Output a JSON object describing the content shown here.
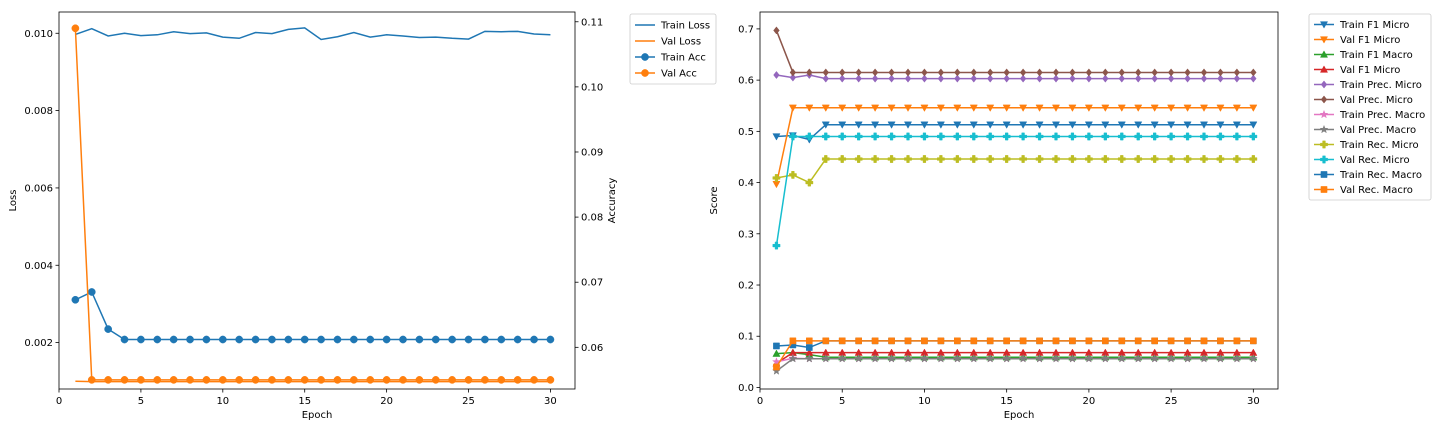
{
  "chart_data": [
    {
      "type": "line",
      "xlabel": "Epoch",
      "ylabel": "Loss",
      "y2label": "Accuracy",
      "xlim": [
        0,
        31.5
      ],
      "ylim": [
        0.0008,
        0.01055
      ],
      "y2lim": [
        0.0536,
        0.1115
      ],
      "xticks": [
        0,
        5,
        10,
        15,
        20,
        25,
        30
      ],
      "yticks": [
        0.002,
        0.004,
        0.006,
        0.008,
        0.01
      ],
      "ytick_labels": [
        "0.002",
        "0.004",
        "0.006",
        "0.008",
        "0.010"
      ],
      "y2ticks": [
        0.06,
        0.07,
        0.08,
        0.09,
        0.1,
        0.11
      ],
      "y2tick_labels": [
        "0.06",
        "0.07",
        "0.08",
        "0.09",
        "0.10",
        "0.11"
      ],
      "legend_position": "outside-top-right",
      "x": [
        1,
        2,
        3,
        4,
        5,
        6,
        7,
        8,
        9,
        10,
        11,
        12,
        13,
        14,
        15,
        16,
        17,
        18,
        19,
        20,
        21,
        22,
        23,
        24,
        25,
        26,
        27,
        28,
        29,
        30
      ],
      "series": [
        {
          "name": "Train Loss",
          "axis": "left",
          "color": "#1f77b4",
          "marker": "none",
          "values": [
            0.00997,
            0.01012,
            0.00993,
            0.01,
            0.00994,
            0.00996,
            0.01004,
            0.00999,
            0.01001,
            0.0099,
            0.00987,
            0.01002,
            0.00999,
            0.0101,
            0.01014,
            0.00984,
            0.00991,
            0.01002,
            0.0099,
            0.00996,
            0.00993,
            0.00989,
            0.0099,
            0.00987,
            0.00985,
            0.01005,
            0.01004,
            0.01005,
            0.00998,
            0.00996
          ]
        },
        {
          "name": "Val Loss",
          "axis": "left",
          "color": "#ff7f0e",
          "marker": "none",
          "values": [
            0.001,
            0.00099,
            0.00099,
            0.00099,
            0.00099,
            0.00099,
            0.00099,
            0.00099,
            0.00099,
            0.00099,
            0.00099,
            0.00099,
            0.00099,
            0.00099,
            0.00099,
            0.00099,
            0.00099,
            0.00099,
            0.00099,
            0.00099,
            0.00099,
            0.00099,
            0.00099,
            0.00099,
            0.00099,
            0.00099,
            0.00099,
            0.00099,
            0.00099,
            0.00099
          ]
        },
        {
          "name": "Train Acc",
          "axis": "right",
          "color": "#1f77b4",
          "marker": "circle",
          "values": [
            0.0673,
            0.0685,
            0.0628,
            0.0612,
            0.0612,
            0.0612,
            0.0612,
            0.0612,
            0.0612,
            0.0612,
            0.0612,
            0.0612,
            0.0612,
            0.0612,
            0.0612,
            0.0612,
            0.0612,
            0.0612,
            0.0612,
            0.0612,
            0.0612,
            0.0612,
            0.0612,
            0.0612,
            0.0612,
            0.0612,
            0.0612,
            0.0612,
            0.0612,
            0.0612
          ]
        },
        {
          "name": "Val Acc",
          "axis": "right",
          "color": "#ff7f0e",
          "marker": "circle",
          "values": [
            0.109,
            0.055,
            0.055,
            0.055,
            0.055,
            0.055,
            0.055,
            0.055,
            0.055,
            0.055,
            0.055,
            0.055,
            0.055,
            0.055,
            0.055,
            0.055,
            0.055,
            0.055,
            0.055,
            0.055,
            0.055,
            0.055,
            0.055,
            0.055,
            0.055,
            0.055,
            0.055,
            0.055,
            0.055,
            0.055
          ]
        }
      ]
    },
    {
      "type": "line",
      "xlabel": "Epoch",
      "ylabel": "Score",
      "xlim": [
        0,
        31.5
      ],
      "ylim": [
        -0.003,
        0.733
      ],
      "xticks": [
        0,
        5,
        10,
        15,
        20,
        25,
        30
      ],
      "yticks": [
        0.0,
        0.1,
        0.2,
        0.3,
        0.4,
        0.5,
        0.6,
        0.7
      ],
      "ytick_labels": [
        "0.0",
        "0.1",
        "0.2",
        "0.3",
        "0.4",
        "0.5",
        "0.6",
        "0.7"
      ],
      "legend_position": "outside-top-right",
      "x": [
        1,
        2,
        3,
        4,
        5,
        6,
        7,
        8,
        9,
        10,
        11,
        12,
        13,
        14,
        15,
        16,
        17,
        18,
        19,
        20,
        21,
        22,
        23,
        24,
        25,
        26,
        27,
        28,
        29,
        30
      ],
      "series": [
        {
          "name": "Train F1 Micro",
          "color": "#1f77b4",
          "marker": "triangle-down",
          "values": [
            0.49,
            0.492,
            0.484,
            0.513,
            0.513,
            0.513,
            0.513,
            0.513,
            0.513,
            0.513,
            0.513,
            0.513,
            0.513,
            0.513,
            0.513,
            0.513,
            0.513,
            0.513,
            0.513,
            0.513,
            0.513,
            0.513,
            0.513,
            0.513,
            0.513,
            0.513,
            0.513,
            0.513,
            0.513,
            0.513
          ]
        },
        {
          "name": "Val F1 Micro",
          "color": "#ff7f0e",
          "marker": "triangle-down",
          "values": [
            0.397,
            0.546,
            0.546,
            0.546,
            0.546,
            0.546,
            0.546,
            0.546,
            0.546,
            0.546,
            0.546,
            0.546,
            0.546,
            0.546,
            0.546,
            0.546,
            0.546,
            0.546,
            0.546,
            0.546,
            0.546,
            0.546,
            0.546,
            0.546,
            0.546,
            0.546,
            0.546,
            0.546,
            0.546,
            0.546
          ]
        },
        {
          "name": "Train F1 Macro",
          "color": "#2ca02c",
          "marker": "triangle-up",
          "values": [
            0.066,
            0.068,
            0.064,
            0.059,
            0.059,
            0.059,
            0.059,
            0.059,
            0.059,
            0.059,
            0.059,
            0.059,
            0.059,
            0.059,
            0.059,
            0.059,
            0.059,
            0.059,
            0.059,
            0.059,
            0.059,
            0.059,
            0.059,
            0.059,
            0.059,
            0.059,
            0.059,
            0.059,
            0.059,
            0.059
          ]
        },
        {
          "name": "Val F1 Micro",
          "color": "#d62728",
          "marker": "triangle-up",
          "values": [
            0.047,
            0.068,
            0.068,
            0.068,
            0.068,
            0.068,
            0.068,
            0.068,
            0.068,
            0.068,
            0.068,
            0.068,
            0.068,
            0.068,
            0.068,
            0.068,
            0.068,
            0.068,
            0.068,
            0.068,
            0.068,
            0.068,
            0.068,
            0.068,
            0.068,
            0.068,
            0.068,
            0.068,
            0.068,
            0.068
          ]
        },
        {
          "name": "Train Prec. Micro",
          "color": "#9467bd",
          "marker": "diamond",
          "values": [
            0.61,
            0.605,
            0.61,
            0.603,
            0.603,
            0.603,
            0.603,
            0.603,
            0.603,
            0.603,
            0.603,
            0.603,
            0.603,
            0.603,
            0.603,
            0.603,
            0.603,
            0.603,
            0.603,
            0.603,
            0.603,
            0.603,
            0.603,
            0.603,
            0.603,
            0.603,
            0.603,
            0.603,
            0.603,
            0.603
          ]
        },
        {
          "name": "Val Prec. Micro",
          "color": "#8c564b",
          "marker": "diamond",
          "values": [
            0.697,
            0.615,
            0.615,
            0.615,
            0.615,
            0.615,
            0.615,
            0.615,
            0.615,
            0.615,
            0.615,
            0.615,
            0.615,
            0.615,
            0.615,
            0.615,
            0.615,
            0.615,
            0.615,
            0.615,
            0.615,
            0.615,
            0.615,
            0.615,
            0.615,
            0.615,
            0.615,
            0.615,
            0.615,
            0.615
          ]
        },
        {
          "name": "Train Prec. Macro",
          "color": "#e377c2",
          "marker": "star",
          "values": [
            0.05,
            0.057,
            0.056,
            0.056,
            0.056,
            0.056,
            0.056,
            0.056,
            0.056,
            0.056,
            0.056,
            0.056,
            0.056,
            0.056,
            0.056,
            0.056,
            0.056,
            0.056,
            0.056,
            0.056,
            0.056,
            0.056,
            0.056,
            0.056,
            0.056,
            0.056,
            0.056,
            0.056,
            0.056,
            0.056
          ]
        },
        {
          "name": "Val Prec. Macro",
          "color": "#7f7f7f",
          "marker": "star",
          "values": [
            0.032,
            0.056,
            0.056,
            0.056,
            0.056,
            0.056,
            0.056,
            0.056,
            0.056,
            0.056,
            0.056,
            0.056,
            0.056,
            0.056,
            0.056,
            0.056,
            0.056,
            0.056,
            0.056,
            0.056,
            0.056,
            0.056,
            0.056,
            0.056,
            0.056,
            0.056,
            0.056,
            0.056,
            0.056,
            0.056
          ]
        },
        {
          "name": "Train Rec. Micro",
          "color": "#bcbd22",
          "marker": "plus",
          "values": [
            0.409,
            0.415,
            0.4,
            0.446,
            0.446,
            0.446,
            0.446,
            0.446,
            0.446,
            0.446,
            0.446,
            0.446,
            0.446,
            0.446,
            0.446,
            0.446,
            0.446,
            0.446,
            0.446,
            0.446,
            0.446,
            0.446,
            0.446,
            0.446,
            0.446,
            0.446,
            0.446,
            0.446,
            0.446,
            0.446
          ]
        },
        {
          "name": "Val Rec. Micro",
          "color": "#17becf",
          "marker": "plus",
          "values": [
            0.277,
            0.49,
            0.49,
            0.49,
            0.49,
            0.49,
            0.49,
            0.49,
            0.49,
            0.49,
            0.49,
            0.49,
            0.49,
            0.49,
            0.49,
            0.49,
            0.49,
            0.49,
            0.49,
            0.49,
            0.49,
            0.49,
            0.49,
            0.49,
            0.49,
            0.49,
            0.49,
            0.49,
            0.49,
            0.49
          ]
        },
        {
          "name": "Train Rec. Macro",
          "color": "#1f77b4",
          "marker": "square",
          "values": [
            0.081,
            0.083,
            0.078,
            0.091,
            0.091,
            0.091,
            0.091,
            0.091,
            0.091,
            0.091,
            0.091,
            0.091,
            0.091,
            0.091,
            0.091,
            0.091,
            0.091,
            0.091,
            0.091,
            0.091,
            0.091,
            0.091,
            0.091,
            0.091,
            0.091,
            0.091,
            0.091,
            0.091,
            0.091,
            0.091
          ]
        },
        {
          "name": "Val Rec. Macro",
          "color": "#ff7f0e",
          "marker": "square",
          "values": [
            0.04,
            0.091,
            0.091,
            0.091,
            0.091,
            0.091,
            0.091,
            0.091,
            0.091,
            0.091,
            0.091,
            0.091,
            0.091,
            0.091,
            0.091,
            0.091,
            0.091,
            0.091,
            0.091,
            0.091,
            0.091,
            0.091,
            0.091,
            0.091,
            0.091,
            0.091,
            0.091,
            0.091,
            0.091,
            0.091
          ]
        }
      ]
    }
  ]
}
